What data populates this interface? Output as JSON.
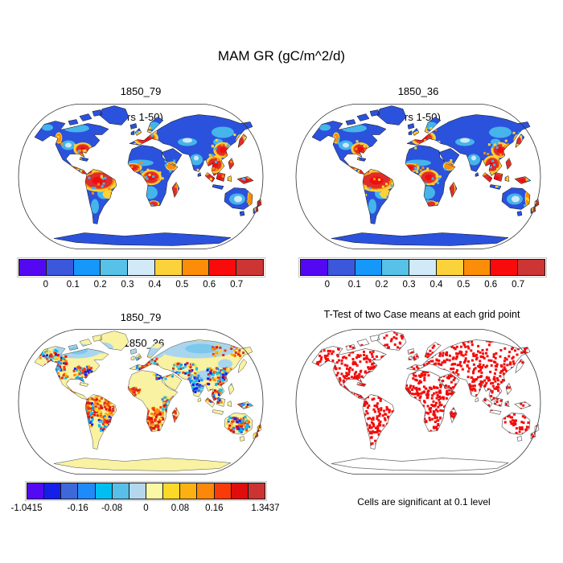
{
  "header": {
    "title": "MAM GR (gC/m^2/d)"
  },
  "panels": {
    "tl": {
      "title_line1": "1850_79",
      "title_line2": "(yrs 1-50)"
    },
    "tr": {
      "title_line1": "1850_36",
      "title_line2": "(yrs 1-50)"
    },
    "bl": {
      "title_line1": "1850_79",
      "title_line2": "- 1850_36"
    },
    "br": {
      "title": "T-Test of two Case means at each grid point",
      "footnote": "Cells are significant at 0.1 level"
    }
  },
  "chart_data": [
    {
      "id": "map-1850-79",
      "type": "heatmap",
      "projection": "robinson",
      "title": "1850_79",
      "subtitle": "(yrs 1-50)",
      "variable": "MAM GR",
      "units": "gC/m^2/d",
      "colorbar": {
        "levels": [
          0,
          0.1,
          0.2,
          0.3,
          0.4,
          0.5,
          0.6,
          0.7
        ],
        "colors": [
          "#5408F2",
          "#3B57DC",
          "#1697FA",
          "#57C1E8",
          "#D2E9F7",
          "#FCD23A",
          "#FB8D09",
          "#FA0B0B",
          "#CD3434"
        ],
        "ticks": [
          {
            "t": "0",
            "f": 0.1111
          },
          {
            "t": "0.1",
            "f": 0.2222
          },
          {
            "t": "0.2",
            "f": 0.3333
          },
          {
            "t": "0.3",
            "f": 0.4444
          },
          {
            "t": "0.4",
            "f": 0.5556
          },
          {
            "t": "0.5",
            "f": 0.6667
          },
          {
            "t": "0.6",
            "f": 0.7778
          },
          {
            "t": "0.7",
            "f": 0.8889
          }
        ]
      },
      "map_render": {
        "base": "#2B52DC",
        "coast": "#101010",
        "coastw": 0.5,
        "cool_color": "#45B4EA",
        "pale_color": "#CFE7F7",
        "ring_gold": "#FCD23A",
        "ring_orange": "#FB8D09",
        "ring_red": "#DE2D2D",
        "core_red": "#F20D0D",
        "cool": [
          [
            70,
            54,
            9,
            6
          ],
          [
            80,
            33,
            16,
            5
          ],
          [
            44,
            32,
            7,
            4
          ],
          [
            114,
            114,
            8,
            7
          ],
          [
            103,
            130,
            5,
            9
          ],
          [
            160,
            76,
            16,
            4
          ],
          [
            172,
            113,
            9,
            8
          ],
          [
            229,
            72,
            8,
            7
          ],
          [
            262,
            38,
            14,
            7
          ],
          [
            218,
            50,
            12,
            5
          ],
          [
            280,
            121,
            10,
            7
          ],
          [
            176,
            30,
            8,
            5
          ],
          [
            256,
            50,
            6,
            4
          ]
        ],
        "pale": [
          [
            70,
            54,
            4,
            3
          ],
          [
            218,
            48,
            6,
            3
          ],
          [
            281,
            121,
            5,
            4
          ],
          [
            229,
            70,
            3,
            3
          ]
        ],
        "hotspots": [
          [
            88,
            59,
            8,
            6,
            "r"
          ],
          [
            80,
            76,
            5,
            7,
            "r"
          ],
          [
            108,
            98,
            17,
            10,
            "r"
          ],
          [
            120,
            115,
            5,
            4,
            "g"
          ],
          [
            166,
            45,
            11,
            7,
            "r"
          ],
          [
            150,
            82,
            8,
            4,
            "r"
          ],
          [
            173,
            94,
            9,
            7,
            "r"
          ],
          [
            202,
            109,
            3,
            8,
            "r"
          ],
          [
            176,
            127,
            5,
            3,
            "r"
          ],
          [
            198,
            80,
            5,
            4,
            "o"
          ],
          [
            252,
            78,
            8,
            8,
            "r"
          ],
          [
            254,
            95,
            14,
            6,
            "r"
          ],
          [
            290,
            98,
            9,
            4,
            "r"
          ],
          [
            272,
            78,
            3,
            6,
            "r"
          ],
          [
            262,
            60,
            8,
            7,
            "r"
          ],
          [
            284,
            50,
            4,
            7,
            "r"
          ],
          [
            307,
            131,
            4,
            8,
            "r"
          ],
          [
            297,
            120,
            3,
            8,
            "o"
          ],
          [
            58,
            45,
            3,
            5,
            "o"
          ],
          [
            93,
            87,
            6,
            3,
            "r"
          ]
        ]
      }
    },
    {
      "id": "map-1850-36",
      "type": "heatmap",
      "projection": "robinson",
      "title": "1850_36",
      "subtitle": "(yrs 1-50)",
      "variable": "MAM GR",
      "units": "gC/m^2/d",
      "render_like": 0,
      "colorbar": {
        "levels": [
          0,
          0.1,
          0.2,
          0.3,
          0.4,
          0.5,
          0.6,
          0.7
        ],
        "colors": [
          "#5408F2",
          "#3B57DC",
          "#1697FA",
          "#57C1E8",
          "#D2E9F7",
          "#FCD23A",
          "#FB8D09",
          "#FA0B0B",
          "#CD3434"
        ],
        "ticks": [
          {
            "t": "0",
            "f": 0.1111
          },
          {
            "t": "0.1",
            "f": 0.2222
          },
          {
            "t": "0.2",
            "f": 0.3333
          },
          {
            "t": "0.3",
            "f": 0.4444
          },
          {
            "t": "0.4",
            "f": 0.5556
          },
          {
            "t": "0.5",
            "f": 0.6667
          },
          {
            "t": "0.6",
            "f": 0.7778
          },
          {
            "t": "0.7",
            "f": 0.8889
          }
        ]
      }
    },
    {
      "id": "map-difference",
      "type": "heatmap-diff",
      "projection": "robinson",
      "title": "1850_79",
      "subtitle": "- 1850_36",
      "min": -1.0415,
      "max": 1.3437,
      "colorbar": {
        "colors": [
          "#5509F2",
          "#1420EA",
          "#3E68D8",
          "#1F8BFA",
          "#00BFF0",
          "#58C0E8",
          "#B4D7EE",
          "#FBF8A5",
          "#FCD929",
          "#FBB111",
          "#FB8808",
          "#F93B0A",
          "#E00D0D",
          "#CC3333"
        ],
        "ticks": [
          {
            "t": "-1.0415",
            "f": 0
          },
          {
            "t": "-0.16",
            "f": 0.2143
          },
          {
            "t": "-0.08",
            "f": 0.3571
          },
          {
            "t": "0",
            "f": 0.5
          },
          {
            "t": "0.08",
            "f": 0.6429
          },
          {
            "t": "0.16",
            "f": 0.7857
          },
          {
            "t": "1.3437",
            "f": 1
          }
        ]
      },
      "map_render": {
        "base": "#F8F2A2",
        "coast": "#3a3a3a",
        "coastw": 0.45,
        "cold_color": "#A9D6EE",
        "cold2_color": "#7CC8EC",
        "cold": [
          [
            80,
            30,
            30,
            9
          ],
          [
            230,
            28,
            48,
            11
          ],
          [
            175,
            33,
            14,
            7
          ],
          [
            240,
            60,
            12,
            6
          ],
          [
            265,
            46,
            9,
            6
          ],
          [
            112,
            26,
            14,
            7
          ],
          [
            150,
            30,
            8,
            5
          ]
        ],
        "cold2": [
          [
            235,
            27,
            20,
            6
          ],
          [
            82,
            29,
            12,
            5
          ]
        ],
        "mix_colors": {
          "hot": [
            "#E00D0D",
            "#CC3333",
            "#FB8808",
            "#FCD929",
            "#F93B0A",
            "#FBB111"
          ],
          "cold": [
            "#1F8BFA",
            "#1420EA",
            "#00BFF0",
            "#3E68D8",
            "#58C0E8"
          ],
          "mixed": [
            "#E00D0D",
            "#CC3333",
            "#FB8808",
            "#FCD929",
            "#F93B0A",
            "#1F8BFA",
            "#1420EA",
            "#00BFF0",
            "#58C0E8"
          ]
        },
        "speckles": [
          [
            55,
            50,
            14,
            15,
            110,
            "mixed"
          ],
          [
            88,
            58,
            11,
            9,
            70,
            "mixed"
          ],
          [
            77,
            73,
            8,
            8,
            55,
            "hot"
          ],
          [
            45,
            33,
            11,
            6,
            30,
            "mixed"
          ],
          [
            108,
            100,
            18,
            13,
            150,
            "hot"
          ],
          [
            96,
            110,
            5,
            17,
            45,
            "mixed"
          ],
          [
            116,
            120,
            8,
            9,
            40,
            "mixed"
          ],
          [
            174,
            114,
            14,
            14,
            130,
            "hot"
          ],
          [
            150,
            81,
            9,
            6,
            45,
            "hot"
          ],
          [
            194,
            96,
            7,
            10,
            45,
            "mixed"
          ],
          [
            168,
            45,
            13,
            8,
            60,
            "mixed"
          ],
          [
            186,
            60,
            10,
            5,
            25,
            "mixed"
          ],
          [
            215,
            54,
            17,
            9,
            50,
            "mixed"
          ],
          [
            258,
            62,
            15,
            11,
            110,
            "mixed"
          ],
          [
            228,
            72,
            9,
            9,
            60,
            "cold"
          ],
          [
            250,
            86,
            11,
            8,
            50,
            "mixed"
          ],
          [
            281,
            121,
            14,
            10,
            80,
            "mixed"
          ],
          [
            202,
            109,
            4,
            9,
            25,
            "hot"
          ],
          [
            270,
            30,
            22,
            8,
            35,
            "hot"
          ],
          [
            290,
            100,
            8,
            5,
            25,
            "mixed"
          ],
          [
            306,
            128,
            5,
            9,
            20,
            "hot"
          ]
        ]
      }
    },
    {
      "id": "map-ttest",
      "type": "significance",
      "projection": "robinson",
      "title": "T-Test of two Case means at each grid point",
      "footnote": "Cells are significant at 0.1 level",
      "significance_level": 0.1,
      "map_render": {
        "base": "#ffffff",
        "coast": "#666666",
        "coastw": 0.7,
        "sig_color": "#F50A0A",
        "regions": [
          [
            30,
            22,
            95,
            55,
            0.5
          ],
          [
            66,
            62,
            30,
            26,
            0.5
          ],
          [
            88,
            84,
            45,
            70,
            0.55
          ],
          [
            110,
            6,
            38,
            26,
            0.25
          ],
          [
            146,
            28,
            48,
            30,
            0.45
          ],
          [
            142,
            58,
            26,
            26,
            0.45
          ],
          [
            144,
            74,
            66,
            58,
            0.55
          ],
          [
            150,
            52,
            44,
            10,
            0.35
          ],
          [
            186,
            58,
            28,
            24,
            0.4
          ],
          [
            178,
            16,
            125,
            32,
            0.4
          ],
          [
            198,
            46,
            44,
            18,
            0.28
          ],
          [
            236,
            48,
            44,
            42,
            0.5
          ],
          [
            216,
            62,
            26,
            26,
            0.5
          ],
          [
            240,
            84,
            66,
            22,
            0.45
          ],
          [
            262,
            104,
            42,
            34,
            0.4
          ],
          [
            298,
            120,
            14,
            22,
            0.5
          ],
          [
            196,
            98,
            14,
            24,
            0.5
          ]
        ]
      }
    }
  ]
}
